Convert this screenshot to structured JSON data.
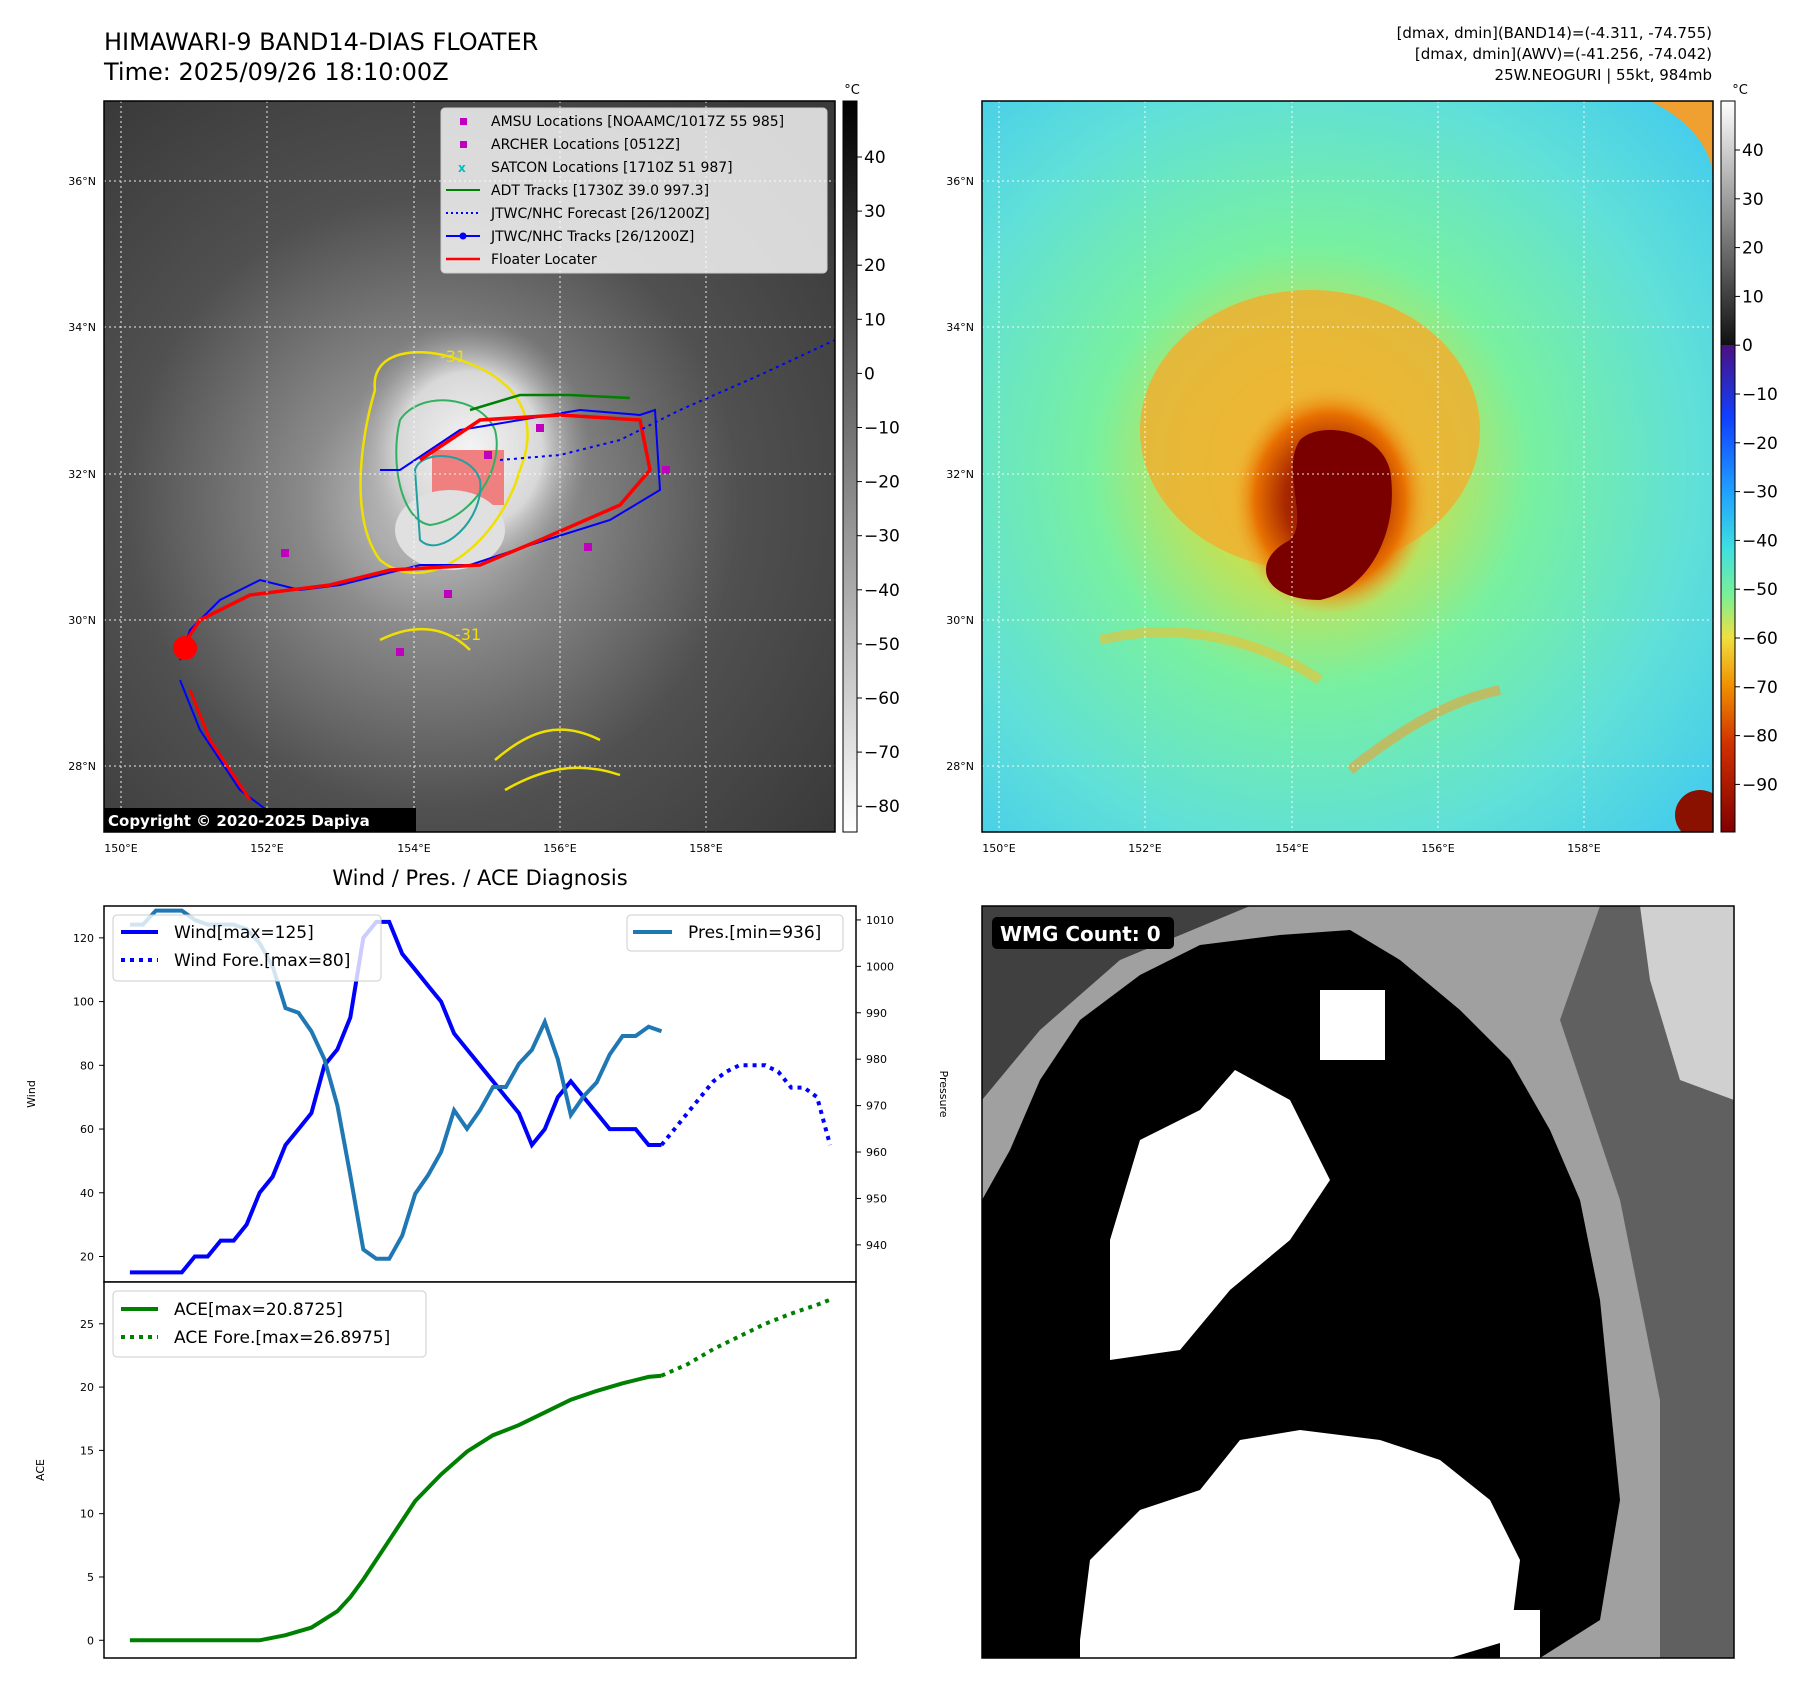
{
  "header": {
    "title_line1": "HIMAWARI-9 BAND14-DIAS FLOATER",
    "title_line2": "Time: 2025/09/26 18:10:00Z",
    "info_line1": "[dmax, dmin](BAND14)=(-4.311, -74.755)",
    "info_line2": "[dmax, dmin](AWV)=(-41.256, -74.042)",
    "info_line3": "25W.NEOGURI | 55kt, 984mb"
  },
  "map_axes": {
    "lat_labels": [
      "36°N",
      "34°N",
      "32°N",
      "30°N",
      "28°N"
    ],
    "lon_labels": [
      "150°E",
      "152°E",
      "154°E",
      "156°E",
      "158°E"
    ]
  },
  "ir_panel": {
    "colorbar_unit": "°C",
    "colorbar_ticks": [
      "40",
      "30",
      "20",
      "10",
      "0",
      "−10",
      "−20",
      "−30",
      "−40",
      "−50",
      "−60",
      "−70",
      "−80"
    ],
    "contour_label_1": "-31",
    "contour_label_2": "-31",
    "copyright": "Copyright © 2020-2025 Dapiya",
    "legend": [
      {
        "label": "AMSU Locations [NOAAMC/1017Z 55 985]",
        "color": "#bf00bf"
      },
      {
        "label": "ARCHER Locations [0512Z]",
        "color": "#bf00bf"
      },
      {
        "label": "SATCON Locations [1710Z 51 987]",
        "color": "#00bfbf"
      },
      {
        "label": "ADT Tracks [1730Z 39.0 997.3]",
        "color": "#008000"
      },
      {
        "label": "JTWC/NHC Forecast [26/1200Z]",
        "color": "#0000ff"
      },
      {
        "label": "JTWC/NHC Tracks [26/1200Z]",
        "color": "#0000ff"
      },
      {
        "label": "Floater Locater",
        "color": "#ff0000"
      }
    ]
  },
  "wv_panel": {
    "colorbar_unit": "°C",
    "colorbar_ticks": [
      "40",
      "30",
      "20",
      "10",
      "0",
      "−10",
      "−20",
      "−30",
      "−40",
      "−50",
      "−60",
      "−70",
      "−80",
      "−90"
    ]
  },
  "diag_title": "Wind / Pres. / ACE Diagnosis",
  "wmg_label": "WMG Count: 0",
  "chart_data": [
    {
      "type": "line",
      "title": "Wind / Pres. / ACE Diagnosis",
      "ylabel": "Wind",
      "y2label": "Pressure",
      "ylim": [
        12,
        130
      ],
      "y2lim": [
        932,
        1013
      ],
      "yticks": [
        20,
        40,
        60,
        80,
        100,
        120
      ],
      "y2ticks": [
        940,
        950,
        960,
        970,
        980,
        990,
        1000,
        1010
      ],
      "xlim": [
        -2,
        56
      ],
      "series": [
        {
          "name": "Wind[max=125]",
          "color": "#0000ff",
          "style": "solid",
          "x": [
            0,
            1,
            2,
            3,
            4,
            5,
            6,
            7,
            8,
            9,
            10,
            11,
            12,
            13,
            14,
            15,
            16,
            17,
            18,
            19,
            20,
            21,
            22,
            23,
            24,
            25,
            26,
            27,
            28,
            29,
            30,
            31,
            32,
            33,
            34,
            35,
            36,
            37,
            38,
            39,
            40,
            41
          ],
          "values": [
            15,
            15,
            15,
            15,
            15,
            20,
            20,
            25,
            25,
            30,
            40,
            45,
            55,
            60,
            65,
            80,
            85,
            95,
            120,
            125,
            125,
            115,
            110,
            105,
            100,
            90,
            85,
            80,
            75,
            70,
            65,
            55,
            60,
            70,
            75,
            70,
            65,
            60,
            60,
            60,
            55,
            55
          ]
        },
        {
          "name": "Wind Fore.[max=80]",
          "color": "#0000ff",
          "style": "dotted",
          "x": [
            41,
            42,
            43,
            44,
            45,
            46,
            47,
            48,
            49,
            50,
            51,
            52,
            53,
            54
          ],
          "values": [
            55,
            60,
            65,
            70,
            75,
            78,
            80,
            80,
            80,
            78,
            73,
            73,
            70,
            55
          ]
        },
        {
          "name": "Pres.[min=936]",
          "color": "#1f77b4",
          "style": "solid",
          "x": [
            0,
            1,
            2,
            3,
            4,
            5,
            6,
            7,
            8,
            9,
            10,
            11,
            12,
            13,
            14,
            15,
            16,
            17,
            18,
            19,
            20,
            21,
            22,
            23,
            24,
            25,
            26,
            27,
            28,
            29,
            30,
            31,
            32,
            33,
            34,
            35,
            36,
            37,
            38,
            39,
            40,
            41
          ],
          "values": [
            1009,
            1009,
            1012,
            1012,
            1012,
            1010,
            1009,
            1009,
            1009,
            1008,
            1005,
            1000,
            991,
            990,
            986,
            980,
            970,
            955,
            939,
            937,
            937,
            942,
            951,
            955,
            960,
            969,
            965,
            969,
            974,
            974,
            979,
            982,
            988,
            980,
            968,
            972,
            975,
            981,
            985,
            985,
            987,
            986
          ]
        }
      ]
    },
    {
      "type": "line",
      "ylabel": "ACE",
      "ylim": [
        -1.4,
        28.3
      ],
      "yticks": [
        0,
        5,
        10,
        15,
        20,
        25
      ],
      "xlim": [
        -2,
        56
      ],
      "series": [
        {
          "name": "ACE[max=20.8725]",
          "color": "#008000",
          "style": "solid",
          "x": [
            0,
            2,
            4,
            6,
            8,
            9,
            10,
            12,
            14,
            16,
            17,
            18,
            20,
            22,
            24,
            26,
            28,
            30,
            32,
            34,
            36,
            38,
            40,
            41
          ],
          "values": [
            0,
            0,
            0,
            0,
            0,
            0,
            0,
            0.4,
            1.0,
            2.3,
            3.4,
            4.8,
            7.9,
            11.0,
            13.1,
            14.9,
            16.2,
            17.0,
            18.0,
            19.0,
            19.7,
            20.3,
            20.8,
            20.9
          ]
        },
        {
          "name": "ACE Fore.[max=26.8975]",
          "color": "#008000",
          "style": "dotted",
          "x": [
            41,
            43,
            45,
            47,
            49,
            51,
            53,
            54
          ],
          "values": [
            20.9,
            21.8,
            23.0,
            24.0,
            25.0,
            25.8,
            26.5,
            26.9
          ]
        }
      ]
    }
  ]
}
